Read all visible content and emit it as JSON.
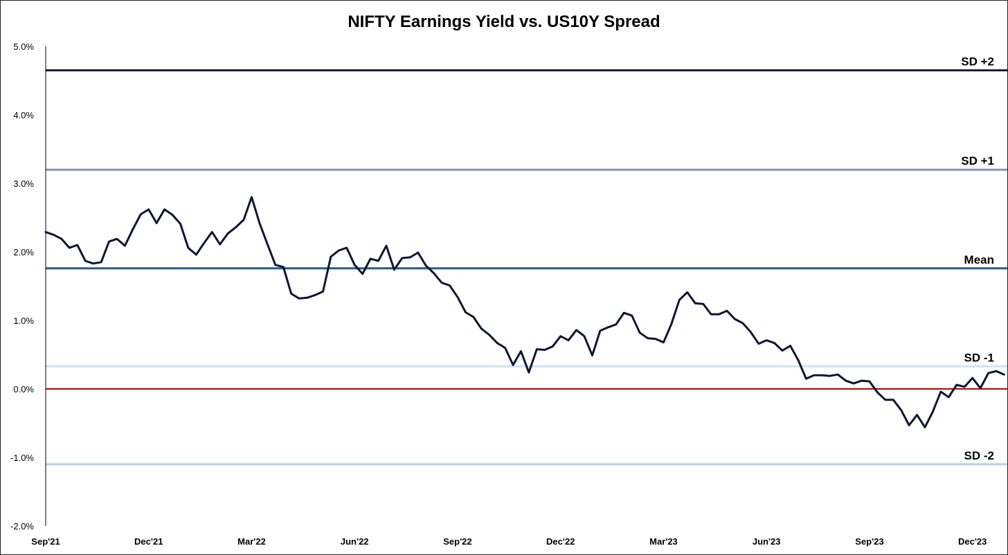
{
  "colors": {
    "series": "#0d1530",
    "sd_plus2": "#141d3c",
    "sd_plus1": "#8593b6",
    "mean": "#1f5c99",
    "sd_minus1": "#cbe6f6",
    "sd_minus2": "#a9d4ec",
    "zero": "#c00000",
    "axis": "#000000"
  },
  "chart_data": {
    "type": "line",
    "title": "NIFTY Earnings Yield vs. US10Y Spread",
    "xlabel": "",
    "ylabel": "",
    "ylim": [
      -2.0,
      5.0
    ],
    "y_ticks": [
      -2.0,
      -1.0,
      0.0,
      1.0,
      2.0,
      3.0,
      4.0,
      5.0
    ],
    "y_tick_labels": [
      "-2.0%",
      "-1.0%",
      "0.0%",
      "1.0%",
      "2.0%",
      "3.0%",
      "4.0%",
      "5.0%"
    ],
    "x_ticks": [
      {
        "label": "Sep'21",
        "index": 0
      },
      {
        "label": "Dec'21",
        "index": 13
      },
      {
        "label": "Mar'22",
        "index": 26
      },
      {
        "label": "Jun'22",
        "index": 39
      },
      {
        "label": "Sep'22",
        "index": 52
      },
      {
        "label": "Dec'22",
        "index": 65
      },
      {
        "label": "Mar'23",
        "index": 78
      },
      {
        "label": "Jun'23",
        "index": 91
      },
      {
        "label": "Sep'23",
        "index": 104
      },
      {
        "label": "Dec'23",
        "index": 117
      }
    ],
    "x_count": 121,
    "reference_lines": [
      {
        "name": "SD +2",
        "value": 4.65,
        "color_key": "sd_plus2",
        "width": 3
      },
      {
        "name": "SD +1",
        "value": 3.2,
        "color_key": "sd_plus1",
        "width": 3
      },
      {
        "name": "Mean",
        "value": 1.76,
        "color_key": "mean",
        "width": 3
      },
      {
        "name": "SD -1",
        "value": 0.33,
        "color_key": "sd_minus1",
        "width": 3
      },
      {
        "name": "SD -2",
        "value": -1.1,
        "color_key": "sd_minus2",
        "width": 3
      }
    ],
    "zero_line": {
      "value": 0.0,
      "color_key": "zero"
    },
    "series": [
      {
        "name": "Spread",
        "values": [
          2.29,
          2.25,
          2.19,
          2.06,
          2.1,
          1.87,
          1.83,
          1.85,
          2.15,
          2.19,
          2.09,
          2.33,
          2.55,
          2.62,
          2.42,
          2.62,
          2.54,
          2.41,
          2.06,
          1.96,
          2.13,
          2.29,
          2.11,
          2.27,
          2.36,
          2.47,
          2.8,
          2.42,
          2.11,
          1.81,
          1.78,
          1.39,
          1.32,
          1.33,
          1.37,
          1.42,
          1.93,
          2.02,
          2.06,
          1.81,
          1.68,
          1.9,
          1.87,
          2.09,
          1.74,
          1.91,
          1.92,
          1.99,
          1.8,
          1.69,
          1.55,
          1.51,
          1.34,
          1.12,
          1.05,
          0.88,
          0.79,
          0.67,
          0.6,
          0.35,
          0.55,
          0.24,
          0.58,
          0.57,
          0.62,
          0.77,
          0.71,
          0.86,
          0.77,
          0.49,
          0.85,
          0.9,
          0.94,
          1.11,
          1.07,
          0.82,
          0.74,
          0.73,
          0.68,
          0.95,
          1.3,
          1.41,
          1.25,
          1.24,
          1.09,
          1.09,
          1.14,
          1.02,
          0.96,
          0.83,
          0.66,
          0.71,
          0.67,
          0.56,
          0.63,
          0.42,
          0.15,
          0.2,
          0.2,
          0.19,
          0.21,
          0.12,
          0.08,
          0.12,
          0.11,
          -0.05,
          -0.16,
          -0.16,
          -0.31,
          -0.53,
          -0.38,
          -0.56,
          -0.33,
          -0.04,
          -0.12,
          0.06,
          0.03,
          0.16,
          0.01,
          0.23,
          0.26,
          0.21
        ]
      }
    ]
  }
}
